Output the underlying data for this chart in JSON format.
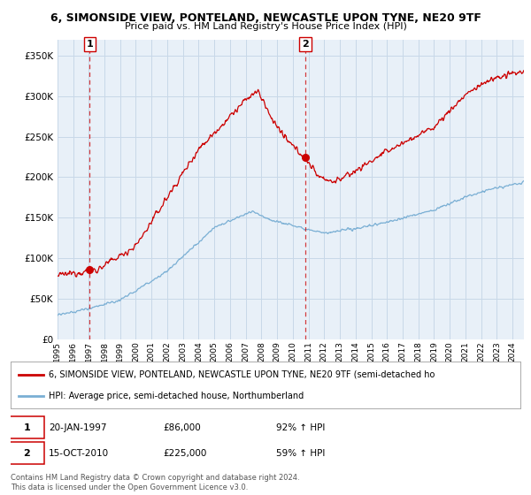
{
  "title": "6, SIMONSIDE VIEW, PONTELAND, NEWCASTLE UPON TYNE, NE20 9TF",
  "subtitle": "Price paid vs. HM Land Registry's House Price Index (HPI)",
  "ylabel_ticks": [
    "£0",
    "£50K",
    "£100K",
    "£150K",
    "£200K",
    "£250K",
    "£300K",
    "£350K"
  ],
  "ytick_values": [
    0,
    50000,
    100000,
    150000,
    200000,
    250000,
    300000,
    350000
  ],
  "ylim": [
    0,
    370000
  ],
  "xlim_start": 1995.0,
  "xlim_end": 2024.7,
  "sale1_x": 1997.055,
  "sale1_y": 86000,
  "sale1_date": "20-JAN-1997",
  "sale1_price": 86000,
  "sale1_hpi_pct": "92% ↑ HPI",
  "sale2_x": 2010.79,
  "sale2_y": 225000,
  "sale2_date": "15-OCT-2010",
  "sale2_price": 225000,
  "sale2_hpi_pct": "59% ↑ HPI",
  "legend_line1": "6, SIMONSIDE VIEW, PONTELAND, NEWCASTLE UPON TYNE, NE20 9TF (semi-detached ho",
  "legend_line2": "HPI: Average price, semi-detached house, Northumberland",
  "footer1": "Contains HM Land Registry data © Crown copyright and database right 2024.",
  "footer2": "This data is licensed under the Open Government Licence v3.0.",
  "red_color": "#cc0000",
  "blue_color": "#7aafd4",
  "bg_color": "#e8f0f8",
  "plot_bg": "#ffffff",
  "grid_color": "#c8d8e8",
  "box_color": "#cc0000"
}
